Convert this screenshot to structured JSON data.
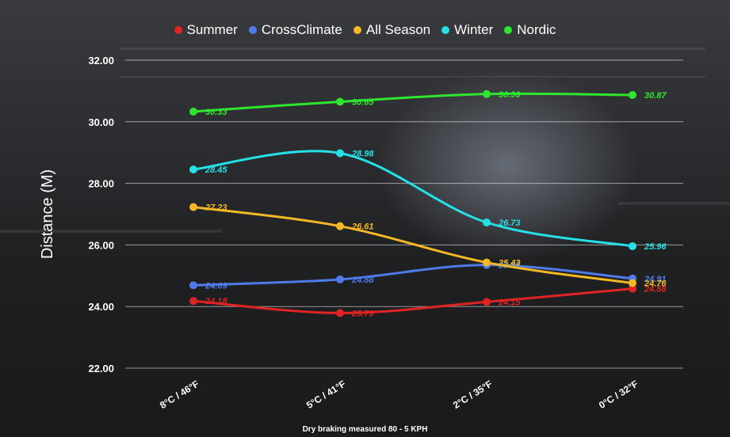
{
  "chart_data": {
    "type": "line",
    "categories": [
      "8°C / 46°F",
      "5°C / 41°F",
      "2°C / 35°F",
      "0°C / 32°F"
    ],
    "ylabel": "Distance (M)",
    "xlabel": "Dry braking measured 80 - 5 KPH",
    "ylim": [
      22,
      32
    ],
    "yticks": [
      "22.00",
      "24.00",
      "26.00",
      "28.00",
      "30.00",
      "32.00"
    ],
    "grid": true,
    "legend_position": "top-center",
    "series": [
      {
        "name": "Summer",
        "color": "#e02424",
        "values": [
          24.18,
          23.79,
          24.15,
          24.58
        ],
        "labels": [
          "24.18",
          "23.79",
          "24.15",
          "24.58"
        ]
      },
      {
        "name": "CrossClimate",
        "color": "#4f7be8",
        "values": [
          24.69,
          24.88,
          25.35,
          24.91
        ],
        "labels": [
          "24.69",
          "24.88",
          "25.35",
          "24.91"
        ]
      },
      {
        "name": "All Season",
        "color": "#f4b824",
        "values": [
          27.23,
          26.61,
          25.43,
          24.76
        ],
        "labels": [
          "27.23",
          "26.61",
          "25.43",
          "24.76"
        ]
      },
      {
        "name": "Winter",
        "color": "#25e0e6",
        "values": [
          28.45,
          28.98,
          26.73,
          25.96
        ],
        "labels": [
          "28.45",
          "28.98",
          "26.73",
          "25.96"
        ]
      },
      {
        "name": "Nordic",
        "color": "#2ee62e",
        "values": [
          30.33,
          30.65,
          30.9,
          30.87
        ],
        "labels": [
          "30.33",
          "30.65",
          "30.90",
          "30.87"
        ]
      }
    ]
  }
}
